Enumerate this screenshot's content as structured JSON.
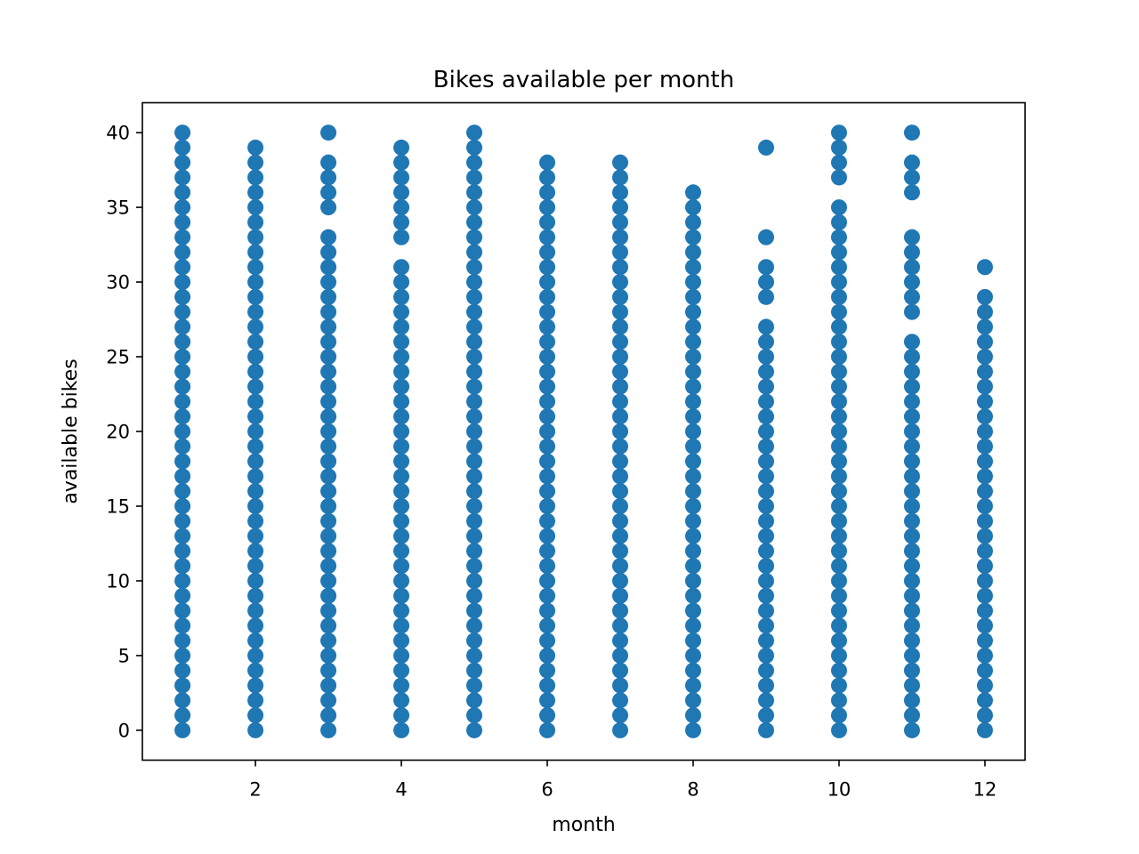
{
  "chart_data": {
    "type": "scatter",
    "title": "Bikes available per month",
    "xlabel": "month",
    "ylabel": "available bikes",
    "xlim": [
      0.45,
      12.55
    ],
    "ylim": [
      -2,
      42
    ],
    "x_ticks": [
      2,
      4,
      6,
      8,
      10,
      12
    ],
    "y_ticks": [
      0,
      5,
      10,
      15,
      20,
      25,
      30,
      35,
      40
    ],
    "grid": false,
    "legend": "none",
    "marker_color": "#1f77b4",
    "series": [
      {
        "points": [
          {
            "month": 1,
            "available_bikes": [
              0,
              1,
              2,
              3,
              4,
              5,
              6,
              7,
              8,
              9,
              10,
              11,
              12,
              13,
              14,
              15,
              16,
              17,
              18,
              19,
              20,
              21,
              22,
              23,
              24,
              25,
              26,
              27,
              28,
              29,
              30,
              31,
              32,
              33,
              34,
              35,
              36,
              37,
              38,
              39,
              40
            ]
          },
          {
            "month": 2,
            "available_bikes": [
              0,
              1,
              2,
              3,
              4,
              5,
              6,
              7,
              8,
              9,
              10,
              11,
              12,
              13,
              14,
              15,
              16,
              17,
              18,
              19,
              20,
              21,
              22,
              23,
              24,
              25,
              26,
              27,
              28,
              29,
              30,
              31,
              32,
              33,
              34,
              35,
              36,
              37,
              38,
              39
            ]
          },
          {
            "month": 3,
            "available_bikes": [
              0,
              1,
              2,
              3,
              4,
              5,
              6,
              7,
              8,
              9,
              10,
              11,
              12,
              13,
              14,
              15,
              16,
              17,
              18,
              19,
              20,
              21,
              22,
              23,
              24,
              25,
              26,
              27,
              28,
              29,
              30,
              31,
              32,
              33,
              35,
              36,
              37,
              38,
              40
            ]
          },
          {
            "month": 4,
            "available_bikes": [
              0,
              1,
              2,
              3,
              4,
              5,
              6,
              7,
              8,
              9,
              10,
              11,
              12,
              13,
              14,
              15,
              16,
              17,
              18,
              19,
              20,
              21,
              22,
              23,
              24,
              25,
              26,
              27,
              28,
              29,
              30,
              31,
              33,
              34,
              35,
              36,
              37,
              38,
              39
            ]
          },
          {
            "month": 5,
            "available_bikes": [
              0,
              1,
              2,
              3,
              4,
              5,
              6,
              7,
              8,
              9,
              10,
              11,
              12,
              13,
              14,
              15,
              16,
              17,
              18,
              19,
              20,
              21,
              22,
              23,
              24,
              25,
              26,
              27,
              28,
              29,
              30,
              31,
              32,
              33,
              34,
              35,
              36,
              37,
              38,
              39,
              40
            ]
          },
          {
            "month": 6,
            "available_bikes": [
              0,
              1,
              2,
              3,
              4,
              5,
              6,
              7,
              8,
              9,
              10,
              11,
              12,
              13,
              14,
              15,
              16,
              17,
              18,
              19,
              20,
              21,
              22,
              23,
              24,
              25,
              26,
              27,
              28,
              29,
              30,
              31,
              32,
              33,
              34,
              35,
              36,
              37,
              38
            ]
          },
          {
            "month": 7,
            "available_bikes": [
              0,
              1,
              2,
              3,
              4,
              5,
              6,
              7,
              8,
              9,
              10,
              11,
              12,
              13,
              14,
              15,
              16,
              17,
              18,
              19,
              20,
              21,
              22,
              23,
              24,
              25,
              26,
              27,
              28,
              29,
              30,
              31,
              32,
              33,
              34,
              35,
              36,
              37,
              38
            ]
          },
          {
            "month": 8,
            "available_bikes": [
              0,
              1,
              2,
              3,
              4,
              5,
              6,
              7,
              8,
              9,
              10,
              11,
              12,
              13,
              14,
              15,
              16,
              17,
              18,
              19,
              20,
              21,
              22,
              23,
              24,
              25,
              26,
              27,
              28,
              29,
              30,
              31,
              32,
              33,
              34,
              35,
              36
            ]
          },
          {
            "month": 9,
            "available_bikes": [
              0,
              1,
              2,
              3,
              4,
              5,
              6,
              7,
              8,
              9,
              10,
              11,
              12,
              13,
              14,
              15,
              16,
              17,
              18,
              19,
              20,
              21,
              22,
              23,
              24,
              25,
              26,
              27,
              29,
              30,
              31,
              33,
              39
            ]
          },
          {
            "month": 10,
            "available_bikes": [
              0,
              1,
              2,
              3,
              4,
              5,
              6,
              7,
              8,
              9,
              10,
              11,
              12,
              13,
              14,
              15,
              16,
              17,
              18,
              19,
              20,
              21,
              22,
              23,
              24,
              25,
              26,
              27,
              28,
              29,
              30,
              31,
              32,
              33,
              34,
              35,
              37,
              38,
              39,
              40
            ]
          },
          {
            "month": 11,
            "available_bikes": [
              0,
              1,
              2,
              3,
              4,
              5,
              6,
              7,
              8,
              9,
              10,
              11,
              12,
              13,
              14,
              15,
              16,
              17,
              18,
              19,
              20,
              21,
              22,
              23,
              24,
              25,
              26,
              28,
              29,
              30,
              31,
              32,
              33,
              36,
              37,
              38,
              40
            ]
          },
          {
            "month": 12,
            "available_bikes": [
              0,
              1,
              2,
              3,
              4,
              5,
              6,
              7,
              8,
              9,
              10,
              11,
              12,
              13,
              14,
              15,
              16,
              17,
              18,
              19,
              20,
              21,
              22,
              23,
              24,
              25,
              26,
              27,
              28,
              29,
              31
            ]
          }
        ]
      }
    ]
  }
}
